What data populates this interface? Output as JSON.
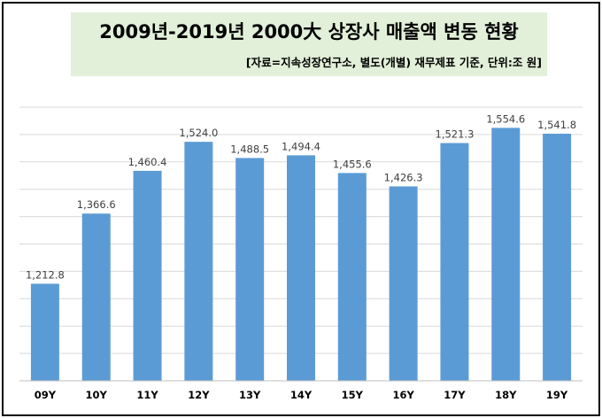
{
  "chart_data": {
    "type": "bar",
    "title": "2009년-2019년 2000大 상장사 매출액 변동 현황",
    "subtitle": "[자료=지속성장연구소, 별도(개별) 재무제표 기준, 단위:조 원]",
    "categories": [
      "09Y",
      "10Y",
      "11Y",
      "12Y",
      "13Y",
      "14Y",
      "15Y",
      "16Y",
      "17Y",
      "18Y",
      "19Y"
    ],
    "values": [
      1212.8,
      1366.6,
      1460.4,
      1524.0,
      1488.5,
      1494.4,
      1455.6,
      1426.3,
      1521.3,
      1554.6,
      1541.8
    ],
    "value_labels": [
      "1,212.8",
      "1,366.6",
      "1,460.4",
      "1,524.0",
      "1,488.5",
      "1,494.4",
      "1,455.6",
      "1,426.3",
      "1,521.3",
      "1,554.6",
      "1,541.8"
    ],
    "ylim": [
      1000,
      1600
    ],
    "grid": true,
    "bar_color": "#5b9bd5",
    "title_bg_color": "#e2efd9"
  }
}
